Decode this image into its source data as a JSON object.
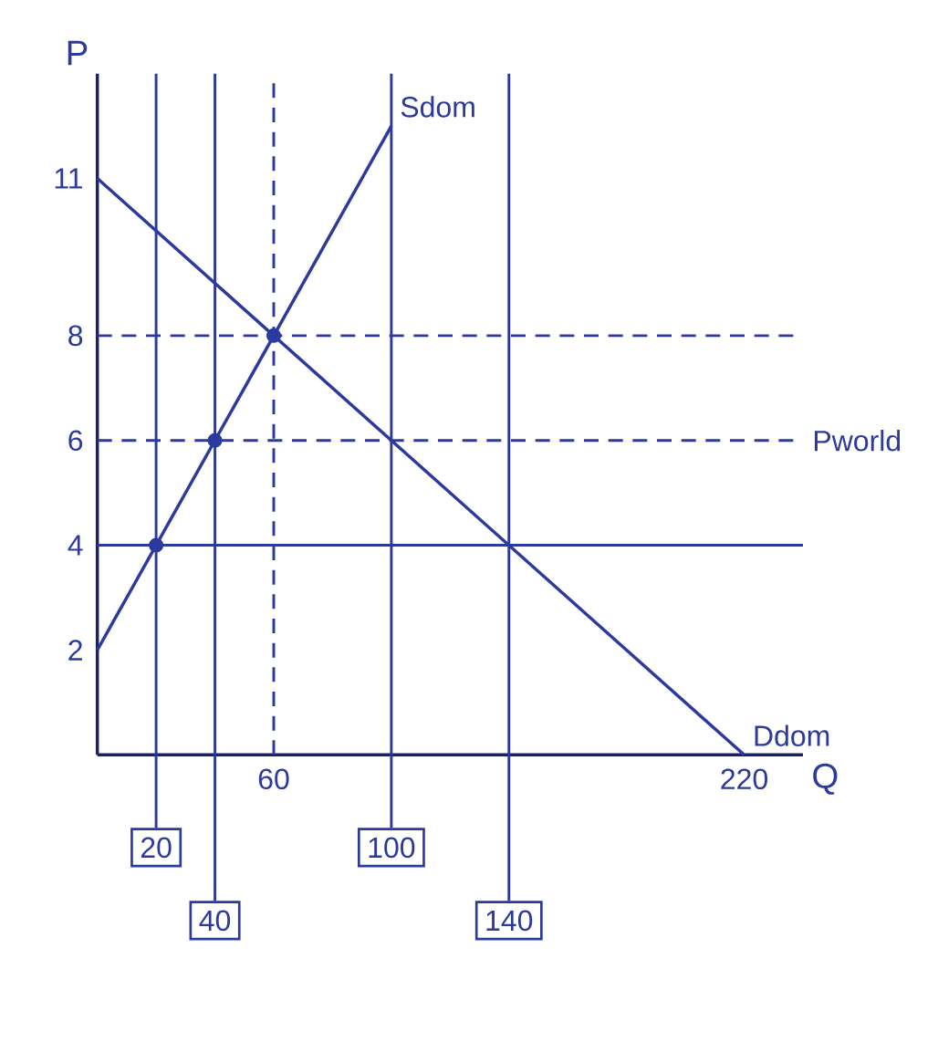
{
  "chart_data": {
    "type": "line",
    "xlabel": "Q",
    "ylabel": "P",
    "xlim": [
      0,
      240
    ],
    "ylim": [
      0,
      13
    ],
    "xticks": [
      60,
      220
    ],
    "yticks": [
      2,
      4,
      6,
      8,
      11
    ],
    "grid": false,
    "series": [
      {
        "name": "Sdom",
        "color": "#2b3a9c",
        "x": [
          0,
          100
        ],
        "values": [
          2,
          12
        ]
      },
      {
        "name": "Ddom",
        "color": "#2b3a9c",
        "x": [
          0,
          220
        ],
        "values": [
          11,
          0
        ]
      },
      {
        "type": "scatter",
        "marker": "circle",
        "color": "#2b3a9c",
        "x": [
          20,
          40,
          60
        ],
        "values": [
          4,
          6,
          8
        ]
      }
    ],
    "ref_lines": [
      {
        "axis": "y",
        "value": 8,
        "line_style": "dashed",
        "color": "#2b3a9c"
      },
      {
        "axis": "y",
        "value": 6,
        "label": "Pworld",
        "line_style": "dashed",
        "color": "#2b3a9c"
      },
      {
        "axis": "y",
        "value": 4,
        "line_style": "solid",
        "color": "#2b3a9c"
      },
      {
        "axis": "x",
        "value": 20,
        "label": "20",
        "line_style": "solid",
        "color": "#2b3a9c"
      },
      {
        "axis": "x",
        "value": 40,
        "label": "40",
        "line_style": "solid",
        "color": "#2b3a9c"
      },
      {
        "axis": "x",
        "value": 60,
        "line_style": "dashed",
        "color": "#2b3a9c"
      },
      {
        "axis": "x",
        "value": 100,
        "label": "100",
        "line_style": "solid",
        "color": "#2b3a9c"
      },
      {
        "axis": "x",
        "value": 140,
        "label": "140",
        "line_style": "solid",
        "color": "#2b3a9c"
      }
    ]
  }
}
